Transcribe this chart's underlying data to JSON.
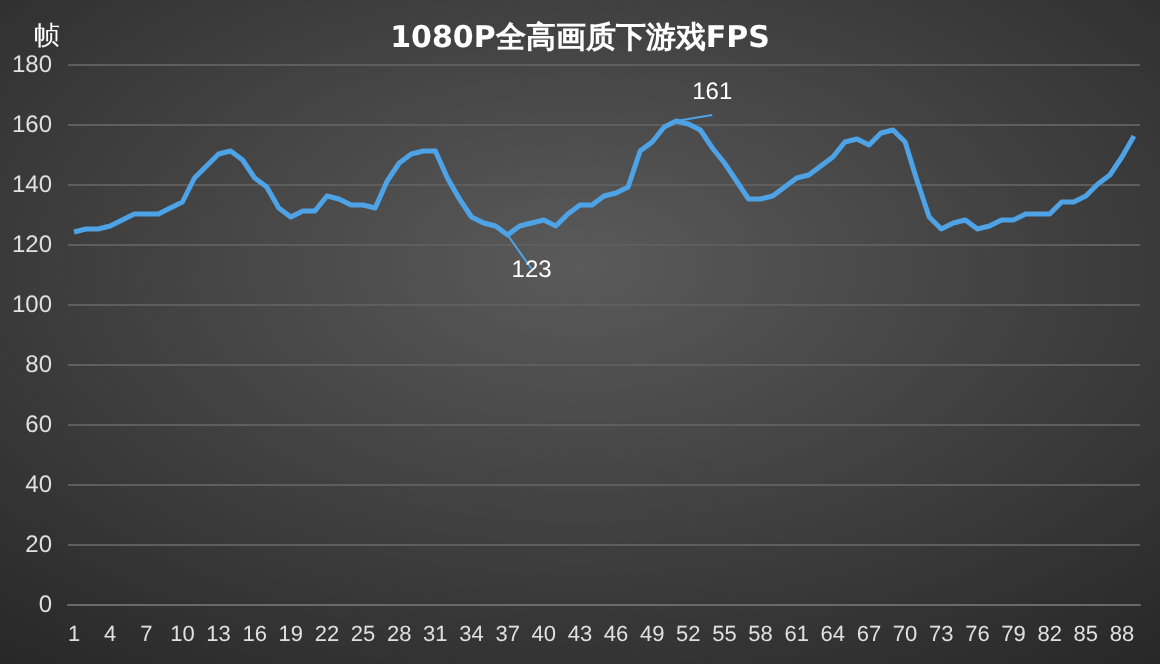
{
  "chart_data": {
    "type": "line",
    "title": "1080P全高画质下游戏FPS",
    "ylabel": "帧",
    "categories": [
      "1",
      null,
      null,
      "4",
      null,
      null,
      "7",
      null,
      null,
      "10",
      null,
      null,
      "13",
      null,
      null,
      "16",
      null,
      null,
      "19",
      null,
      null,
      "22",
      null,
      null,
      "25",
      null,
      null,
      "28",
      null,
      null,
      "31",
      null,
      null,
      "34",
      null,
      null,
      "37",
      null,
      null,
      "40",
      null,
      null,
      "43",
      null,
      null,
      "46",
      null,
      null,
      "49",
      null,
      null,
      "52",
      null,
      null,
      "55",
      null,
      null,
      "58",
      null,
      null,
      "61",
      null,
      null,
      "64",
      null,
      null,
      "67",
      null,
      null,
      "70",
      null,
      null,
      "73",
      null,
      null,
      "76",
      null,
      null,
      "79",
      null,
      null,
      "82",
      null,
      null,
      "85",
      null,
      null,
      "88",
      null
    ],
    "series": [
      {
        "color": "#4ea3e6",
        "values": [
          124,
          125,
          125,
          126,
          128,
          130,
          130,
          130,
          132,
          134,
          142,
          146,
          150,
          151,
          148,
          142,
          139,
          132,
          129,
          131,
          131,
          136,
          135,
          133,
          133,
          132,
          141,
          147,
          150,
          151,
          151,
          142,
          135,
          129,
          127,
          126,
          123,
          126,
          127,
          128,
          126,
          130,
          133,
          133,
          136,
          137,
          139,
          151,
          154,
          159,
          161,
          160,
          158,
          152,
          147,
          141,
          135,
          135,
          136,
          139,
          142,
          143,
          146,
          149,
          154,
          155,
          153,
          157,
          158,
          154,
          141,
          129,
          125,
          127,
          128,
          125,
          126,
          128,
          128,
          130,
          130,
          130,
          134,
          134,
          136,
          140,
          143,
          149,
          156
        ],
        "value_labels": [
          null,
          null,
          null,
          null,
          null,
          null,
          null,
          null,
          null,
          null,
          null,
          null,
          null,
          null,
          null,
          null,
          null,
          null,
          null,
          null,
          null,
          null,
          null,
          null,
          null,
          null,
          null,
          null,
          null,
          null,
          null,
          null,
          null,
          null,
          null,
          null,
          "123",
          null,
          null,
          null,
          null,
          null,
          null,
          null,
          null,
          null,
          null,
          null,
          null,
          null,
          "161",
          null,
          null,
          null,
          null,
          null,
          null,
          null,
          null,
          null,
          null,
          null,
          null,
          null,
          null,
          null,
          null,
          null,
          null,
          null,
          null,
          null,
          null,
          null,
          null,
          null,
          null,
          null,
          null,
          null,
          null,
          null,
          null,
          null,
          null,
          null,
          null,
          null,
          null
        ]
      }
    ],
    "ylim": [
      0,
      180
    ],
    "yticks": [
      0,
      20,
      40,
      60,
      80,
      100,
      120,
      140,
      160,
      180
    ],
    "grid": "y",
    "marker": "none",
    "line_style": "solid"
  }
}
